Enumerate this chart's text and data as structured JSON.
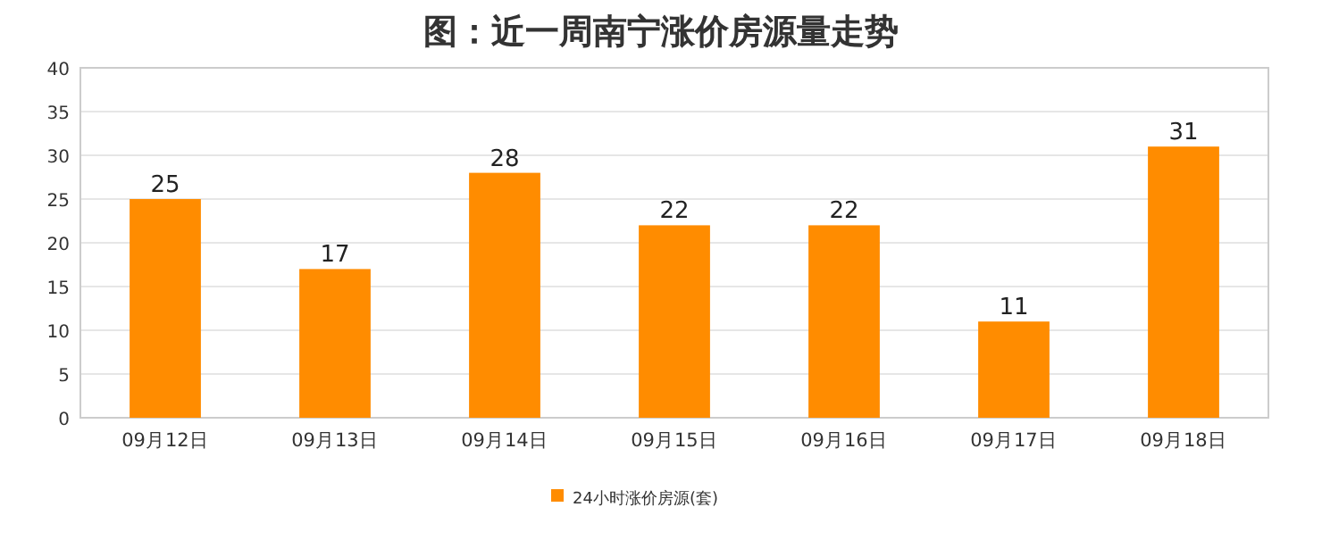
{
  "chart_data": {
    "type": "bar",
    "title": "图：近一周南宁涨价房源量走势",
    "categories": [
      "09月12日",
      "09月13日",
      "09月14日",
      "09月15日",
      "09月16日",
      "09月17日",
      "09月18日"
    ],
    "series": [
      {
        "name": "24小时涨价房源(套)",
        "color": "#ff8c00",
        "values": [
          25,
          17,
          28,
          22,
          22,
          11,
          31
        ]
      }
    ],
    "ylim": [
      0,
      40
    ],
    "yticks": [
      0,
      5,
      10,
      15,
      20,
      25,
      30,
      35,
      40
    ],
    "grid": "y",
    "legend": "bottom",
    "data_labels": true
  }
}
